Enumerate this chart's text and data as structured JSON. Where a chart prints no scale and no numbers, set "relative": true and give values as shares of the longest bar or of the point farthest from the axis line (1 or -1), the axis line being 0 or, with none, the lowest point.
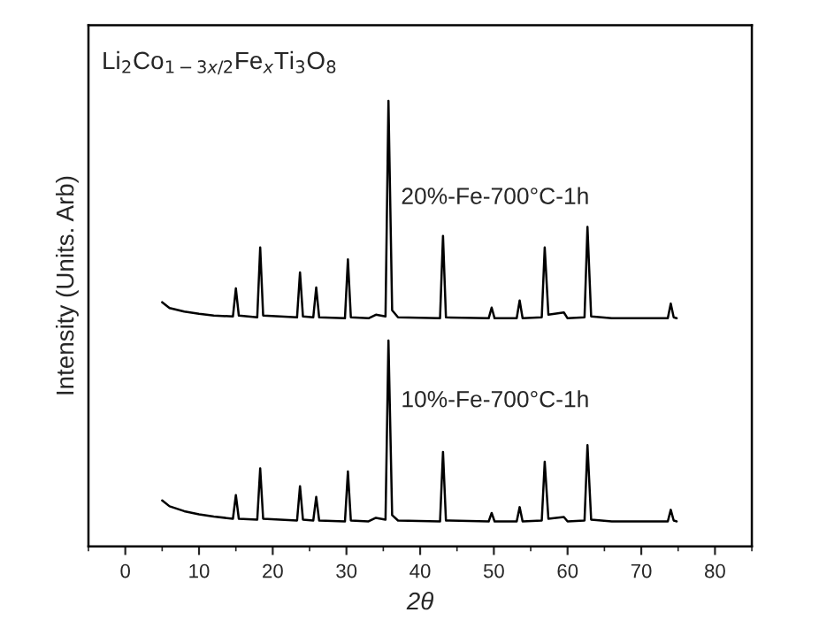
{
  "chart_data": {
    "type": "line",
    "relative": true,
    "title": "Li$_{2}$Co$_{1−3x/2}$Fe$_{x}$Ti$_{3}$O$_{8}$",
    "xlabel": "2θ",
    "ylabel": "Intensity (Units. Arb)",
    "x": [
      5,
      6,
      8,
      10,
      12,
      14.6,
      15.0,
      15.4,
      17.9,
      18.3,
      18.7,
      23.3,
      23.7,
      24.1,
      25.5,
      25.9,
      26.3,
      29.8,
      30.2,
      30.6,
      33,
      34,
      35.3,
      35.7,
      36.2,
      37,
      42.7,
      43.1,
      43.5,
      49.3,
      49.7,
      50.1,
      53.1,
      53.5,
      53.9,
      56.5,
      56.9,
      57.4,
      59.5,
      60,
      62.3,
      62.7,
      63.2,
      66,
      70,
      73.6,
      74.0,
      74.4,
      74.8
    ],
    "series": [
      {
        "name": "20%-Fe-700°C-1h",
        "color": "#000000",
        "values": [
          0.548,
          0.535,
          0.527,
          0.522,
          0.518,
          0.516,
          0.579,
          0.518,
          0.514,
          0.671,
          0.518,
          0.514,
          0.615,
          0.516,
          0.514,
          0.581,
          0.514,
          0.512,
          0.644,
          0.514,
          0.512,
          0.52,
          0.516,
          1.0,
          0.53,
          0.514,
          0.512,
          0.697,
          0.514,
          0.512,
          0.536,
          0.512,
          0.512,
          0.552,
          0.512,
          0.514,
          0.671,
          0.52,
          0.525,
          0.512,
          0.514,
          0.717,
          0.516,
          0.512,
          0.512,
          0.512,
          0.545,
          0.514,
          0.512
        ]
      },
      {
        "name": "10%-Fe-700°C-1h",
        "color": "#000000",
        "values": [
          0.103,
          0.09,
          0.079,
          0.072,
          0.067,
          0.062,
          0.115,
          0.062,
          0.06,
          0.175,
          0.062,
          0.058,
          0.135,
          0.06,
          0.058,
          0.111,
          0.058,
          0.056,
          0.168,
          0.058,
          0.056,
          0.064,
          0.06,
          0.462,
          0.07,
          0.058,
          0.056,
          0.212,
          0.058,
          0.056,
          0.075,
          0.056,
          0.056,
          0.088,
          0.056,
          0.058,
          0.19,
          0.062,
          0.066,
          0.056,
          0.058,
          0.227,
          0.06,
          0.056,
          0.056,
          0.056,
          0.082,
          0.058,
          0.056
        ]
      }
    ],
    "xlim": [
      -5,
      85
    ],
    "xticks": [
      0,
      10,
      20,
      30,
      40,
      50,
      60,
      70,
      80
    ],
    "tick_labels": "x",
    "grid": false,
    "legend": false
  }
}
